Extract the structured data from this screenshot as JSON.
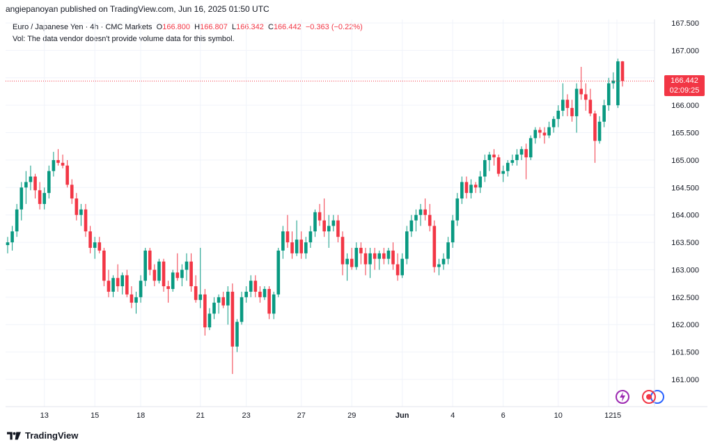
{
  "header": {
    "publisher": "angiepanoyan published on TradingView.com, Jun 16, 2025 01:50 UTC"
  },
  "legend": {
    "symbol": "Euro / Japanese Yen · 4h · CMC Markets",
    "o_label": "O",
    "o_value": "166.800",
    "h_label": "H",
    "h_value": "166.807",
    "l_label": "L",
    "l_value": "166.342",
    "c_label": "C",
    "c_value": "166.442",
    "change": "−0.363 (−0.22%)",
    "vol_note": "Vol: The data vendor doesn't provide volume data for this symbol."
  },
  "price_tag": {
    "price": "166.442",
    "countdown": "02:09:25"
  },
  "footer": {
    "brand": "TradingView"
  },
  "colors": {
    "up": "#089981",
    "down": "#f23645",
    "grid": "#f0f3fa",
    "axis_text": "#131722"
  },
  "icons": [
    "lightning-icon",
    "record-icon"
  ],
  "chart_data": {
    "type": "candlestick",
    "title": "",
    "xlabel": "",
    "ylabel": "",
    "ylim": [
      160.6,
      167.6
    ],
    "yticks": [
      "167.500",
      "167.000",
      "166.500",
      "166.000",
      "165.500",
      "165.000",
      "164.500",
      "164.000",
      "163.500",
      "163.000",
      "162.500",
      "162.000",
      "161.500",
      "161.000"
    ],
    "xticks": [
      "13",
      "15",
      "18",
      "21",
      "23",
      "27",
      "29",
      "Jun",
      "4",
      "6",
      "10",
      "12",
      "15"
    ],
    "last_price": 166.442,
    "candles": [
      {
        "o": 163.45,
        "h": 163.6,
        "l": 163.3,
        "c": 163.5
      },
      {
        "o": 163.5,
        "h": 163.8,
        "l": 163.35,
        "c": 163.7
      },
      {
        "o": 163.7,
        "h": 164.2,
        "l": 163.6,
        "c": 164.1
      },
      {
        "o": 164.1,
        "h": 164.6,
        "l": 163.9,
        "c": 164.5
      },
      {
        "o": 164.5,
        "h": 164.8,
        "l": 164.2,
        "c": 164.6
      },
      {
        "o": 164.6,
        "h": 164.9,
        "l": 164.45,
        "c": 164.7
      },
      {
        "o": 164.7,
        "h": 164.75,
        "l": 164.3,
        "c": 164.45
      },
      {
        "o": 164.45,
        "h": 164.6,
        "l": 164.1,
        "c": 164.2
      },
      {
        "o": 164.2,
        "h": 164.5,
        "l": 164.1,
        "c": 164.4
      },
      {
        "o": 164.4,
        "h": 164.9,
        "l": 164.3,
        "c": 164.8
      },
      {
        "o": 164.8,
        "h": 165.15,
        "l": 164.7,
        "c": 165.0
      },
      {
        "o": 165.0,
        "h": 165.2,
        "l": 164.9,
        "c": 164.95
      },
      {
        "o": 164.95,
        "h": 165.1,
        "l": 164.85,
        "c": 164.9
      },
      {
        "o": 164.9,
        "h": 165.0,
        "l": 164.5,
        "c": 164.55
      },
      {
        "o": 164.55,
        "h": 164.65,
        "l": 164.2,
        "c": 164.3
      },
      {
        "o": 164.3,
        "h": 164.4,
        "l": 163.9,
        "c": 164.0
      },
      {
        "o": 164.0,
        "h": 164.2,
        "l": 163.8,
        "c": 164.1
      },
      {
        "o": 164.1,
        "h": 164.2,
        "l": 163.6,
        "c": 163.7
      },
      {
        "o": 163.7,
        "h": 163.8,
        "l": 163.3,
        "c": 163.4
      },
      {
        "o": 163.4,
        "h": 163.6,
        "l": 163.2,
        "c": 163.5
      },
      {
        "o": 163.5,
        "h": 163.6,
        "l": 163.3,
        "c": 163.35
      },
      {
        "o": 163.35,
        "h": 163.4,
        "l": 162.7,
        "c": 162.8
      },
      {
        "o": 162.8,
        "h": 163.0,
        "l": 162.5,
        "c": 162.6
      },
      {
        "o": 162.6,
        "h": 162.9,
        "l": 162.5,
        "c": 162.85
      },
      {
        "o": 162.85,
        "h": 163.1,
        "l": 162.6,
        "c": 162.7
      },
      {
        "o": 162.7,
        "h": 162.95,
        "l": 162.55,
        "c": 162.9
      },
      {
        "o": 162.9,
        "h": 163.0,
        "l": 162.5,
        "c": 162.55
      },
      {
        "o": 162.55,
        "h": 162.7,
        "l": 162.3,
        "c": 162.4
      },
      {
        "o": 162.4,
        "h": 162.6,
        "l": 162.2,
        "c": 162.5
      },
      {
        "o": 162.5,
        "h": 162.9,
        "l": 162.4,
        "c": 162.8
      },
      {
        "o": 162.8,
        "h": 163.4,
        "l": 162.7,
        "c": 163.35
      },
      {
        "o": 163.35,
        "h": 163.4,
        "l": 162.9,
        "c": 163.0
      },
      {
        "o": 163.0,
        "h": 163.1,
        "l": 162.7,
        "c": 162.8
      },
      {
        "o": 162.8,
        "h": 163.2,
        "l": 162.75,
        "c": 163.15
      },
      {
        "o": 163.15,
        "h": 163.2,
        "l": 162.6,
        "c": 162.7
      },
      {
        "o": 162.7,
        "h": 162.8,
        "l": 162.4,
        "c": 162.65
      },
      {
        "o": 162.65,
        "h": 163.0,
        "l": 162.6,
        "c": 162.95
      },
      {
        "o": 162.95,
        "h": 163.3,
        "l": 162.8,
        "c": 162.85
      },
      {
        "o": 162.85,
        "h": 163.1,
        "l": 162.7,
        "c": 163.0
      },
      {
        "o": 163.0,
        "h": 163.3,
        "l": 162.8,
        "c": 163.15
      },
      {
        "o": 163.15,
        "h": 163.3,
        "l": 162.6,
        "c": 162.7
      },
      {
        "o": 162.7,
        "h": 162.9,
        "l": 162.4,
        "c": 162.45
      },
      {
        "o": 162.45,
        "h": 163.4,
        "l": 162.3,
        "c": 162.55
      },
      {
        "o": 162.55,
        "h": 162.65,
        "l": 161.8,
        "c": 161.95
      },
      {
        "o": 161.95,
        "h": 162.3,
        "l": 161.9,
        "c": 162.2
      },
      {
        "o": 162.2,
        "h": 162.5,
        "l": 162.1,
        "c": 162.4
      },
      {
        "o": 162.4,
        "h": 162.55,
        "l": 162.2,
        "c": 162.5
      },
      {
        "o": 162.5,
        "h": 162.6,
        "l": 162.3,
        "c": 162.35
      },
      {
        "o": 162.35,
        "h": 162.7,
        "l": 162.0,
        "c": 162.6
      },
      {
        "o": 162.6,
        "h": 162.75,
        "l": 161.1,
        "c": 161.6
      },
      {
        "o": 161.6,
        "h": 162.1,
        "l": 161.5,
        "c": 162.05
      },
      {
        "o": 162.05,
        "h": 162.6,
        "l": 162.0,
        "c": 162.5
      },
      {
        "o": 162.5,
        "h": 162.7,
        "l": 162.4,
        "c": 162.6
      },
      {
        "o": 162.6,
        "h": 162.9,
        "l": 162.5,
        "c": 162.8
      },
      {
        "o": 162.8,
        "h": 162.9,
        "l": 162.5,
        "c": 162.6
      },
      {
        "o": 162.6,
        "h": 162.7,
        "l": 162.4,
        "c": 162.5
      },
      {
        "o": 162.5,
        "h": 162.7,
        "l": 162.45,
        "c": 162.65
      },
      {
        "o": 162.65,
        "h": 162.7,
        "l": 162.1,
        "c": 162.2
      },
      {
        "o": 162.2,
        "h": 162.6,
        "l": 162.1,
        "c": 162.55
      },
      {
        "o": 162.55,
        "h": 163.4,
        "l": 162.5,
        "c": 163.35
      },
      {
        "o": 163.35,
        "h": 163.8,
        "l": 163.2,
        "c": 163.7
      },
      {
        "o": 163.7,
        "h": 164.0,
        "l": 163.4,
        "c": 163.5
      },
      {
        "o": 163.5,
        "h": 163.7,
        "l": 163.2,
        "c": 163.3
      },
      {
        "o": 163.3,
        "h": 163.9,
        "l": 163.25,
        "c": 163.55
      },
      {
        "o": 163.55,
        "h": 163.7,
        "l": 163.2,
        "c": 163.3
      },
      {
        "o": 163.3,
        "h": 163.6,
        "l": 163.2,
        "c": 163.5
      },
      {
        "o": 163.5,
        "h": 163.8,
        "l": 163.4,
        "c": 163.7
      },
      {
        "o": 163.7,
        "h": 164.1,
        "l": 163.6,
        "c": 164.05
      },
      {
        "o": 164.05,
        "h": 164.2,
        "l": 163.8,
        "c": 163.9
      },
      {
        "o": 163.9,
        "h": 164.3,
        "l": 163.6,
        "c": 163.7
      },
      {
        "o": 163.7,
        "h": 164.0,
        "l": 163.4,
        "c": 163.8
      },
      {
        "o": 163.8,
        "h": 164.0,
        "l": 163.7,
        "c": 163.9
      },
      {
        "o": 163.9,
        "h": 164.0,
        "l": 163.5,
        "c": 163.6
      },
      {
        "o": 163.6,
        "h": 163.7,
        "l": 162.9,
        "c": 163.1
      },
      {
        "o": 163.1,
        "h": 163.3,
        "l": 162.8,
        "c": 163.2
      },
      {
        "o": 163.2,
        "h": 163.4,
        "l": 163.0,
        "c": 163.05
      },
      {
        "o": 163.05,
        "h": 163.5,
        "l": 163.0,
        "c": 163.4
      },
      {
        "o": 163.4,
        "h": 163.5,
        "l": 163.1,
        "c": 163.3
      },
      {
        "o": 163.3,
        "h": 163.4,
        "l": 162.9,
        "c": 163.1
      },
      {
        "o": 163.1,
        "h": 163.4,
        "l": 162.85,
        "c": 163.3
      },
      {
        "o": 163.3,
        "h": 163.4,
        "l": 163.0,
        "c": 163.2
      },
      {
        "o": 163.2,
        "h": 163.35,
        "l": 163.0,
        "c": 163.3
      },
      {
        "o": 163.3,
        "h": 163.4,
        "l": 163.1,
        "c": 163.2
      },
      {
        "o": 163.2,
        "h": 163.4,
        "l": 163.1,
        "c": 163.35
      },
      {
        "o": 163.35,
        "h": 163.5,
        "l": 163.0,
        "c": 163.1
      },
      {
        "o": 163.1,
        "h": 163.3,
        "l": 162.8,
        "c": 162.9
      },
      {
        "o": 162.9,
        "h": 163.3,
        "l": 162.85,
        "c": 163.2
      },
      {
        "o": 163.2,
        "h": 163.8,
        "l": 163.1,
        "c": 163.7
      },
      {
        "o": 163.7,
        "h": 164.0,
        "l": 163.6,
        "c": 163.9
      },
      {
        "o": 163.9,
        "h": 164.1,
        "l": 163.7,
        "c": 164.0
      },
      {
        "o": 164.0,
        "h": 164.2,
        "l": 163.8,
        "c": 164.1
      },
      {
        "o": 164.1,
        "h": 164.3,
        "l": 163.9,
        "c": 164.0
      },
      {
        "o": 164.0,
        "h": 164.2,
        "l": 163.7,
        "c": 163.8
      },
      {
        "o": 163.8,
        "h": 163.9,
        "l": 162.95,
        "c": 163.05
      },
      {
        "o": 163.05,
        "h": 163.2,
        "l": 162.9,
        "c": 163.1
      },
      {
        "o": 163.1,
        "h": 163.3,
        "l": 163.0,
        "c": 163.2
      },
      {
        "o": 163.2,
        "h": 163.6,
        "l": 163.1,
        "c": 163.5
      },
      {
        "o": 163.5,
        "h": 164.0,
        "l": 163.4,
        "c": 163.9
      },
      {
        "o": 163.9,
        "h": 164.4,
        "l": 163.8,
        "c": 164.3
      },
      {
        "o": 164.3,
        "h": 164.7,
        "l": 164.2,
        "c": 164.6
      },
      {
        "o": 164.6,
        "h": 164.7,
        "l": 164.3,
        "c": 164.4
      },
      {
        "o": 164.4,
        "h": 164.65,
        "l": 164.3,
        "c": 164.55
      },
      {
        "o": 164.55,
        "h": 164.6,
        "l": 164.4,
        "c": 164.5
      },
      {
        "o": 164.5,
        "h": 164.8,
        "l": 164.4,
        "c": 164.7
      },
      {
        "o": 164.7,
        "h": 165.1,
        "l": 164.6,
        "c": 165.0
      },
      {
        "o": 165.0,
        "h": 165.15,
        "l": 164.8,
        "c": 165.1
      },
      {
        "o": 165.1,
        "h": 165.2,
        "l": 164.9,
        "c": 165.05
      },
      {
        "o": 165.05,
        "h": 165.1,
        "l": 164.7,
        "c": 164.75
      },
      {
        "o": 164.75,
        "h": 164.9,
        "l": 164.6,
        "c": 164.8
      },
      {
        "o": 164.8,
        "h": 165.0,
        "l": 164.7,
        "c": 164.95
      },
      {
        "o": 164.95,
        "h": 165.1,
        "l": 164.9,
        "c": 165.0
      },
      {
        "o": 165.0,
        "h": 165.2,
        "l": 164.9,
        "c": 165.1
      },
      {
        "o": 165.1,
        "h": 165.25,
        "l": 165.0,
        "c": 165.2
      },
      {
        "o": 165.2,
        "h": 165.3,
        "l": 164.65,
        "c": 165.05
      },
      {
        "o": 165.05,
        "h": 165.45,
        "l": 165.0,
        "c": 165.4
      },
      {
        "o": 165.4,
        "h": 165.6,
        "l": 165.3,
        "c": 165.55
      },
      {
        "o": 165.55,
        "h": 165.6,
        "l": 165.4,
        "c": 165.5
      },
      {
        "o": 165.5,
        "h": 165.6,
        "l": 165.3,
        "c": 165.45
      },
      {
        "o": 165.45,
        "h": 165.7,
        "l": 165.4,
        "c": 165.6
      },
      {
        "o": 165.6,
        "h": 165.8,
        "l": 165.5,
        "c": 165.75
      },
      {
        "o": 165.75,
        "h": 166.0,
        "l": 165.6,
        "c": 165.9
      },
      {
        "o": 165.9,
        "h": 166.4,
        "l": 165.8,
        "c": 166.1
      },
      {
        "o": 166.1,
        "h": 166.2,
        "l": 165.8,
        "c": 165.95
      },
      {
        "o": 165.95,
        "h": 166.1,
        "l": 165.7,
        "c": 165.8
      },
      {
        "o": 165.8,
        "h": 166.4,
        "l": 165.5,
        "c": 166.3
      },
      {
        "o": 166.3,
        "h": 166.7,
        "l": 166.1,
        "c": 166.2
      },
      {
        "o": 166.2,
        "h": 166.4,
        "l": 165.9,
        "c": 166.1
      },
      {
        "o": 166.1,
        "h": 166.3,
        "l": 165.8,
        "c": 165.85
      },
      {
        "o": 165.85,
        "h": 165.9,
        "l": 164.95,
        "c": 165.35
      },
      {
        "o": 165.35,
        "h": 165.8,
        "l": 165.3,
        "c": 165.7
      },
      {
        "o": 165.7,
        "h": 166.1,
        "l": 165.6,
        "c": 166.0
      },
      {
        "o": 166.0,
        "h": 166.5,
        "l": 165.9,
        "c": 166.4
      },
      {
        "o": 166.4,
        "h": 166.6,
        "l": 166.3,
        "c": 166.45
      },
      {
        "o": 166.0,
        "h": 166.85,
        "l": 165.95,
        "c": 166.8
      },
      {
        "o": 166.8,
        "h": 166.807,
        "l": 166.342,
        "c": 166.442
      }
    ]
  }
}
